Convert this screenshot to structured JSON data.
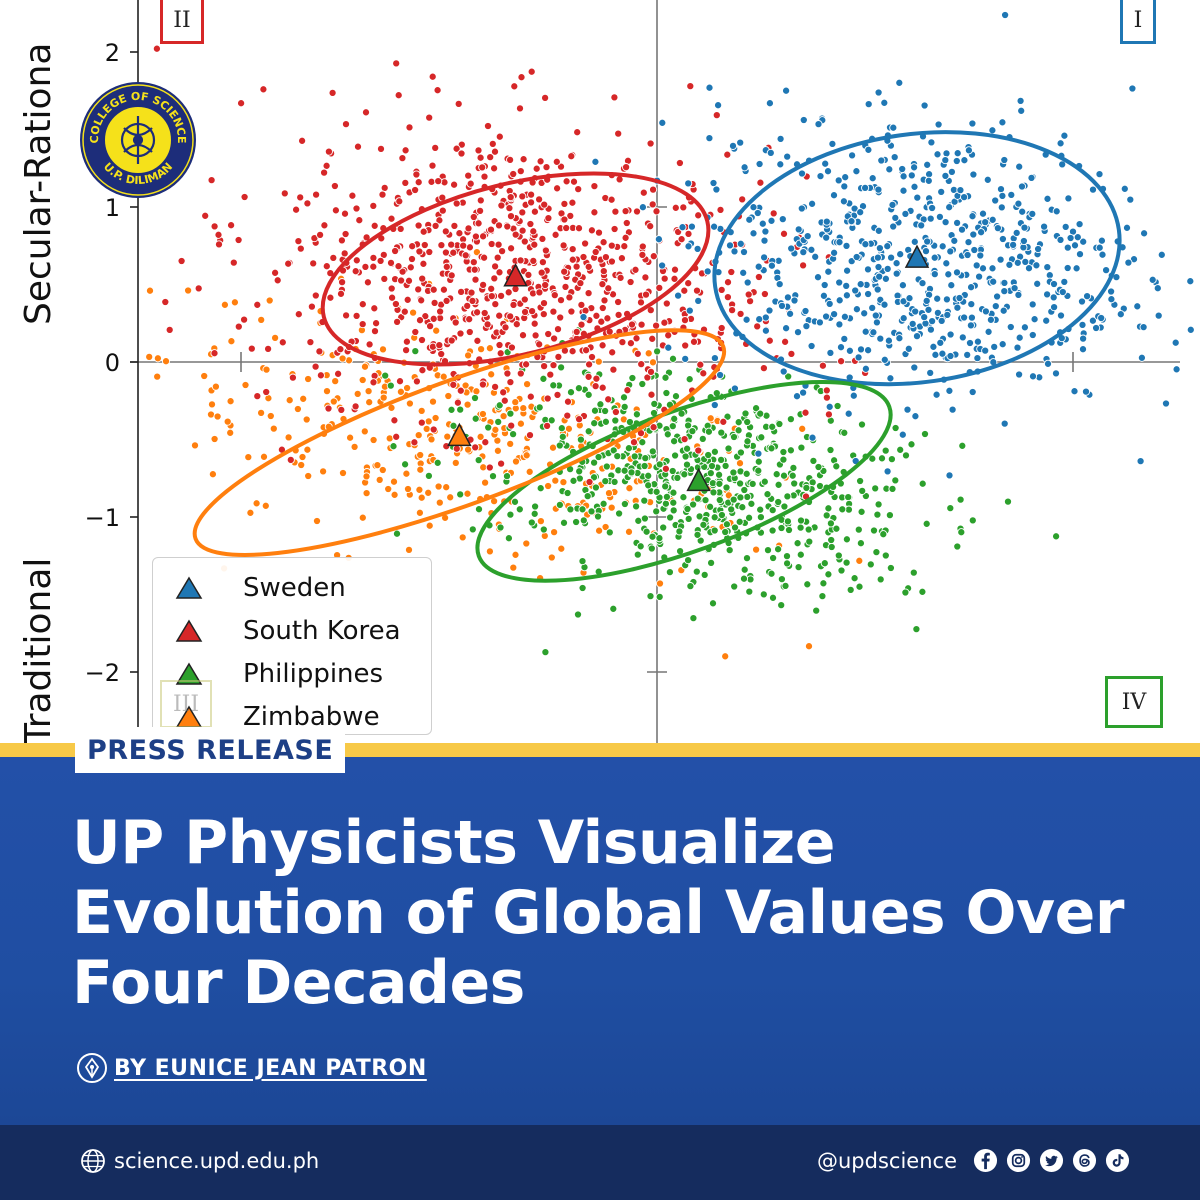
{
  "chart_data": {
    "type": "scatter",
    "title": "",
    "xlabel": "",
    "ylabel": "Traditional / Secular-Rational",
    "ylabel_parts": [
      "Secular-Rationa",
      "Traditional"
    ],
    "ylim": [
      -2.4,
      2.35
    ],
    "xlim": [
      -2.5,
      3.15
    ],
    "yticks": [
      2,
      1,
      0,
      -1,
      -2
    ],
    "ytick_labels": [
      "2",
      "1",
      "0",
      "−1",
      "−2"
    ],
    "grid": false,
    "axes_lines_at": [
      0,
      0
    ],
    "legend_placement": "lower-left",
    "quadrants": [
      "I",
      "II",
      "III",
      "IV"
    ],
    "series": [
      {
        "name": "Sweden",
        "color": "#1f77b4",
        "centroid": [
          1.25,
          0.67
        ],
        "ellipse": {
          "cx": 1.25,
          "cy": 0.67,
          "rx": 0.98,
          "ry": 0.8,
          "angle_deg": -8
        },
        "spread": [
          0.55,
          0.45
        ],
        "n": 700
      },
      {
        "name": "South Korea",
        "color": "#d62728",
        "centroid": [
          -0.68,
          0.55
        ],
        "ellipse": {
          "cx": -0.68,
          "cy": 0.6,
          "rx": 0.95,
          "ry": 0.55,
          "angle_deg": -14
        },
        "spread": [
          0.6,
          0.48
        ],
        "n": 850
      },
      {
        "name": "Philippines",
        "color": "#2ca02c",
        "centroid": [
          0.2,
          -0.77
        ],
        "ellipse": {
          "cx": 0.13,
          "cy": -0.77,
          "rx": 1.05,
          "ry": 0.45,
          "angle_deg": -20
        },
        "spread": [
          0.55,
          0.32
        ],
        "n": 650
      },
      {
        "name": "Zimbabwe",
        "color": "#ff7f0e",
        "centroid": [
          -0.95,
          -0.48
        ],
        "ellipse": {
          "cx": -0.95,
          "cy": -0.52,
          "rx": 1.35,
          "ry": 0.4,
          "angle_deg": -20
        },
        "spread": [
          0.75,
          0.35
        ],
        "n": 380
      }
    ]
  },
  "logo": {
    "text_top": "COLLEGE OF SCIENCE",
    "text_bottom": "U.P. DILIMAN",
    "colors": {
      "ring": "#1d2d7a",
      "fill": "#f5e11a"
    }
  },
  "banner": {
    "badge": "PRESS RELEASE",
    "headline": "UP Physicists Visualize Evolution of Global Values Over Four Decades",
    "byline": "BY EUNICE JEAN PATRON"
  },
  "footer": {
    "website": "science.upd.edu.ph",
    "handle": "@updscience",
    "icons": [
      "facebook-icon",
      "instagram-icon",
      "twitter-icon",
      "threads-icon",
      "tiktok-icon"
    ]
  },
  "colors": {
    "banner_blue": "#2350a8",
    "footer_navy": "#152c5e",
    "accent_yellow": "#f7c948"
  }
}
